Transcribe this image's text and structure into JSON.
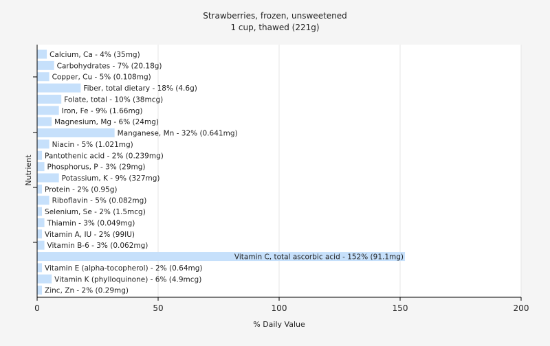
{
  "chart_data": {
    "type": "bar",
    "orientation": "horizontal",
    "title": "Strawberries, frozen, unsweetened",
    "subtitle": "1 cup, thawed (221g)",
    "xlabel": "% Daily Value",
    "ylabel": "Nutrient",
    "xlim": [
      0,
      200
    ],
    "xticks": [
      0,
      50,
      100,
      150,
      200
    ],
    "grid": true,
    "bar_color": "#c6e0fb",
    "categories": [
      "Calcium, Ca",
      "Carbohydrates",
      "Copper, Cu",
      "Fiber, total dietary",
      "Folate, total",
      "Iron, Fe",
      "Magnesium, Mg",
      "Manganese, Mn",
      "Niacin",
      "Pantothenic acid",
      "Phosphorus, P",
      "Potassium, K",
      "Protein",
      "Riboflavin",
      "Selenium, Se",
      "Thiamin",
      "Vitamin A, IU",
      "Vitamin B-6",
      "Vitamin C, total ascorbic acid",
      "Vitamin E (alpha-tocopherol)",
      "Vitamin K (phylloquinone)",
      "Zinc, Zn"
    ],
    "values": [
      4,
      7,
      5,
      18,
      10,
      9,
      6,
      32,
      5,
      2,
      3,
      9,
      2,
      5,
      2,
      3,
      2,
      3,
      152,
      2,
      6,
      2
    ],
    "labels": [
      "Calcium, Ca - 4% (35mg)",
      "Carbohydrates - 7% (20.18g)",
      "Copper, Cu - 5% (0.108mg)",
      "Fiber, total dietary - 18% (4.6g)",
      "Folate, total - 10% (38mcg)",
      "Iron, Fe - 9% (1.66mg)",
      "Magnesium, Mg - 6% (24mg)",
      "Manganese, Mn - 32% (0.641mg)",
      "Niacin - 5% (1.021mg)",
      "Pantothenic acid - 2% (0.239mg)",
      "Phosphorus, P - 3% (29mg)",
      "Potassium, K - 9% (327mg)",
      "Protein - 2% (0.95g)",
      "Riboflavin - 5% (0.082mg)",
      "Selenium, Se - 2% (1.5mcg)",
      "Thiamin - 3% (0.049mg)",
      "Vitamin A, IU - 2% (99IU)",
      "Vitamin B-6 - 3% (0.062mg)",
      "Vitamin C, total ascorbic acid - 152% (91.1mg)",
      "Vitamin E (alpha-tocopherol) - 2% (0.64mg)",
      "Vitamin K (phylloquinone) - 6% (4.9mcg)",
      "Zinc, Zn - 2% (0.29mg)"
    ]
  }
}
